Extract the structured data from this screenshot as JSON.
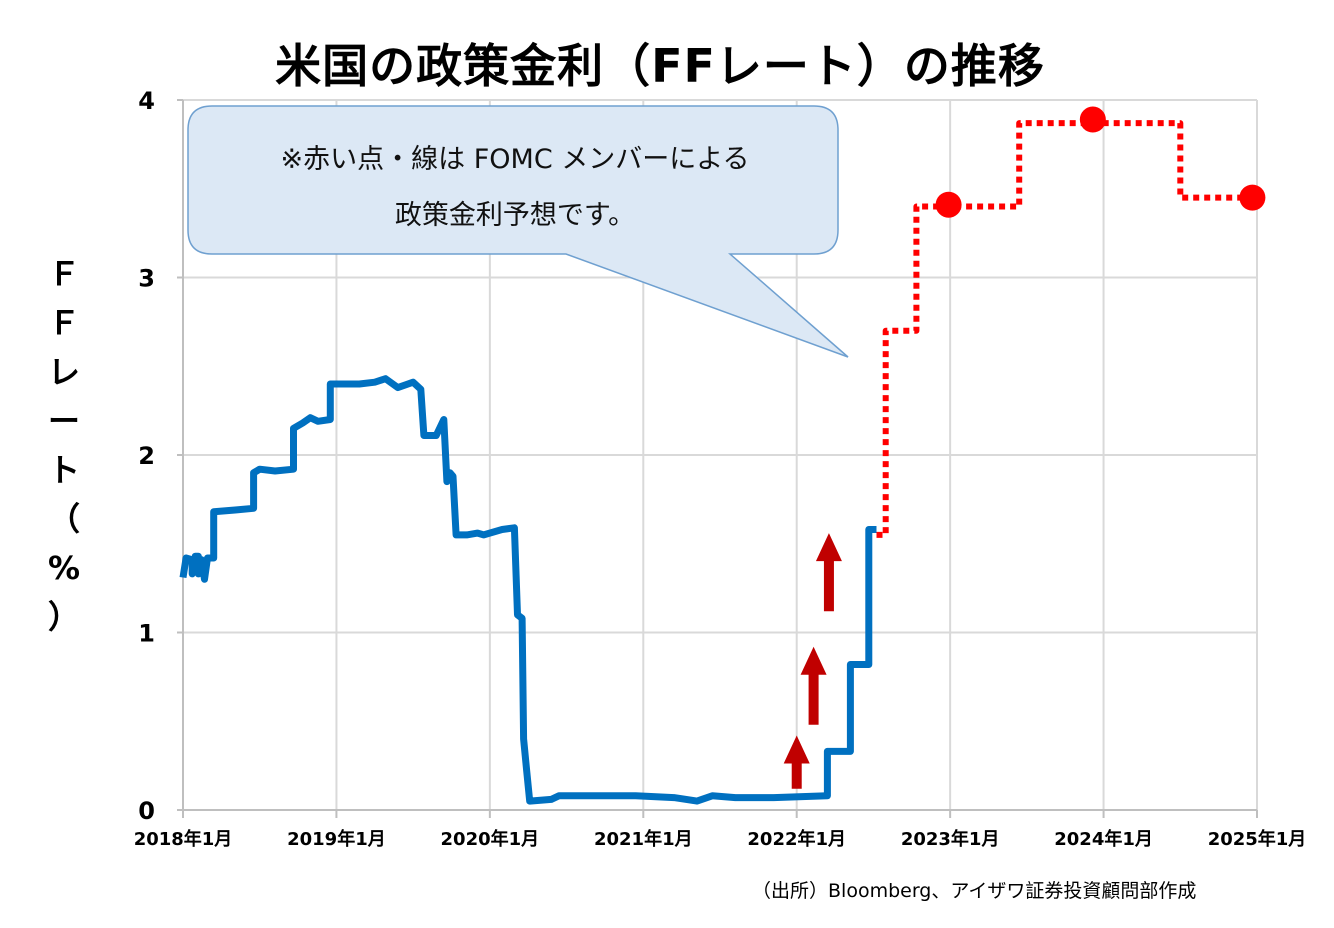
{
  "chart_data": {
    "type": "line",
    "title": "米国の政策金利（FFレート）の推移",
    "ylabel": "ＦＦレート（%）",
    "xlabel": "",
    "ylim": [
      0,
      4
    ],
    "yticks": [
      "0",
      "1",
      "2",
      "3",
      "4"
    ],
    "xlim": [
      2018.0,
      2025.0
    ],
    "xticks": [
      "2018年1月",
      "2019年1月",
      "2020年1月",
      "2021年1月",
      "2022年1月",
      "2023年1月",
      "2024年1月",
      "2025年1月"
    ],
    "grid": true,
    "series": [
      {
        "style": "solid",
        "color": "#0070c0",
        "points": [
          [
            2018.0,
            1.31
          ],
          [
            2018.02,
            1.42
          ],
          [
            2018.06,
            1.41
          ],
          [
            2018.06,
            1.33
          ],
          [
            2018.08,
            1.43
          ],
          [
            2018.1,
            1.43
          ],
          [
            2018.1,
            1.33
          ],
          [
            2018.12,
            1.41
          ],
          [
            2018.14,
            1.3
          ],
          [
            2018.16,
            1.42
          ],
          [
            2018.2,
            1.42
          ],
          [
            2018.2,
            1.68
          ],
          [
            2018.34,
            1.69
          ],
          [
            2018.46,
            1.7
          ],
          [
            2018.46,
            1.9
          ],
          [
            2018.5,
            1.92
          ],
          [
            2018.6,
            1.91
          ],
          [
            2018.72,
            1.92
          ],
          [
            2018.72,
            2.15
          ],
          [
            2018.78,
            2.18
          ],
          [
            2018.83,
            2.21
          ],
          [
            2018.88,
            2.19
          ],
          [
            2018.96,
            2.2
          ],
          [
            2018.96,
            2.4
          ],
          [
            2019.05,
            2.4
          ],
          [
            2019.15,
            2.4
          ],
          [
            2019.25,
            2.41
          ],
          [
            2019.32,
            2.43
          ],
          [
            2019.4,
            2.38
          ],
          [
            2019.5,
            2.41
          ],
          [
            2019.55,
            2.37
          ],
          [
            2019.57,
            2.11
          ],
          [
            2019.65,
            2.11
          ],
          [
            2019.7,
            2.2
          ],
          [
            2019.72,
            1.85
          ],
          [
            2019.74,
            1.9
          ],
          [
            2019.76,
            1.88
          ],
          [
            2019.78,
            1.55
          ],
          [
            2019.85,
            1.55
          ],
          [
            2019.92,
            1.56
          ],
          [
            2019.96,
            1.55
          ],
          [
            2020.08,
            1.58
          ],
          [
            2020.16,
            1.59
          ],
          [
            2020.18,
            1.1
          ],
          [
            2020.21,
            1.08
          ],
          [
            2020.22,
            0.4
          ],
          [
            2020.24,
            0.22
          ],
          [
            2020.26,
            0.05
          ],
          [
            2020.4,
            0.06
          ],
          [
            2020.45,
            0.08
          ],
          [
            2020.7,
            0.08
          ],
          [
            2020.95,
            0.08
          ],
          [
            2021.2,
            0.07
          ],
          [
            2021.35,
            0.05
          ],
          [
            2021.45,
            0.08
          ],
          [
            2021.6,
            0.07
          ],
          [
            2021.85,
            0.07
          ],
          [
            2022.2,
            0.08
          ],
          [
            2022.2,
            0.33
          ],
          [
            2022.35,
            0.33
          ],
          [
            2022.35,
            0.82
          ],
          [
            2022.47,
            0.82
          ],
          [
            2022.47,
            1.58
          ],
          [
            2022.52,
            1.58
          ]
        ]
      },
      {
        "style": "dotted",
        "color": "#ff0000",
        "points": [
          [
            2022.52,
            1.55
          ],
          [
            2022.58,
            1.55
          ],
          [
            2022.58,
            2.7
          ],
          [
            2022.78,
            2.7
          ],
          [
            2022.78,
            3.4
          ],
          [
            2023.45,
            3.4
          ],
          [
            2023.45,
            3.87
          ],
          [
            2024.5,
            3.87
          ],
          [
            2024.5,
            3.45
          ],
          [
            2025.0,
            3.45
          ]
        ]
      }
    ],
    "markers": [
      {
        "x": 2022.99,
        "y": 3.41,
        "color": "#ff0000"
      },
      {
        "x": 2023.93,
        "y": 3.89,
        "color": "#ff0000"
      },
      {
        "x": 2024.97,
        "y": 3.45,
        "color": "#ff0000"
      }
    ],
    "arrows": [
      {
        "x": 2022.0,
        "y_from": 0.12,
        "y_to": 0.42,
        "color": "#c00000"
      },
      {
        "x": 2022.11,
        "y_from": 0.48,
        "y_to": 0.92,
        "color": "#c00000"
      },
      {
        "x": 2022.21,
        "y_from": 1.12,
        "y_to": 1.56,
        "color": "#c00000"
      }
    ],
    "annotation": {
      "lines": [
        "※赤い点・線は FOMC メンバーによる",
        "政策金利予想です。"
      ]
    },
    "source": "（出所）Bloomberg、アイザワ証券投資顧問部作成"
  }
}
